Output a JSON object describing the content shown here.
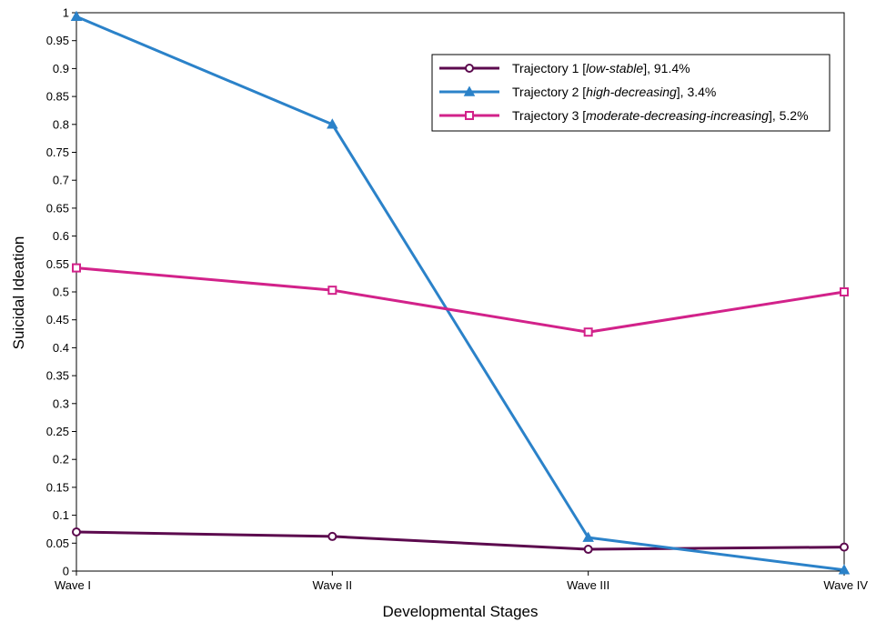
{
  "chart_data": {
    "type": "line",
    "categories": [
      "Wave I",
      "Wave II",
      "Wave III",
      "Wave IV"
    ],
    "xlabel": "Developmental Stages",
    "ylabel": "Suicidal Ideation",
    "ylim": [
      0,
      1
    ],
    "yticks": [
      "0",
      "0.05",
      "0.1",
      "0.15",
      "0.2",
      "0.25",
      "0.3",
      "0.35",
      "0.4",
      "0.45",
      "0.5",
      "0.55",
      "0.6",
      "0.65",
      "0.7",
      "0.75",
      "0.8",
      "0.85",
      "0.9",
      "0.95",
      "1"
    ],
    "grid": false,
    "legend_position": "top-right",
    "series": [
      {
        "name": "Trajectory 1 [low-stable], 91.4%",
        "name_parts": {
          "prefix": "Trajectory 1 [",
          "italic": "low-stable",
          "suffix": "], 91.4%"
        },
        "color": "#5c0a4e",
        "marker": "circle",
        "values": [
          0.07,
          0.062,
          0.039,
          0.043
        ]
      },
      {
        "name": "Trajectory 2 [high-decreasing], 3.4%",
        "name_parts": {
          "prefix": "Trajectory 2 [",
          "italic": "high-decreasing",
          "suffix": "], 3.4%"
        },
        "color": "#2b82c9",
        "marker": "triangle",
        "values": [
          0.993,
          0.8,
          0.06,
          0.002
        ]
      },
      {
        "name": "Trajectory 3 [moderate-decreasing-increasing], 5.2%",
        "name_parts": {
          "prefix": "Trajectory 3 [",
          "italic": "moderate-decreasing-increasing",
          "suffix": "], 5.2%"
        },
        "color": "#d2228a",
        "marker": "square",
        "values": [
          0.543,
          0.503,
          0.428,
          0.5
        ]
      }
    ]
  }
}
